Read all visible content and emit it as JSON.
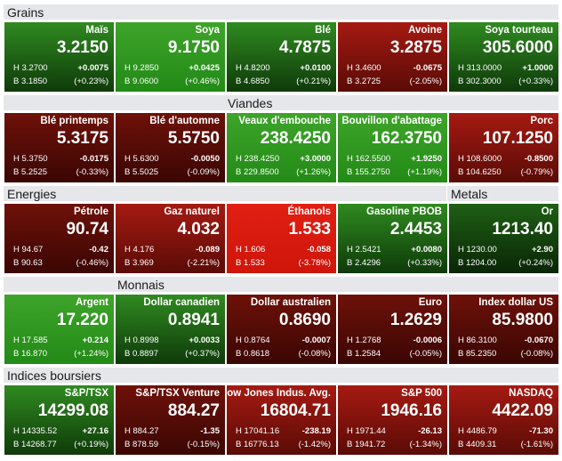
{
  "sections": {
    "grains": "Grains",
    "viandes": "Viandes",
    "energies": "Energies",
    "metals": "Metals",
    "monnais": "Monnais",
    "indices": "Indices boursiers"
  },
  "tiles": [
    {
      "name": "Maïs",
      "price": "3.2150",
      "high": "H 3.2700",
      "low": "B 3.1850",
      "change": "+0.0075",
      "percent": "(+0.23%)"
    },
    {
      "name": "Soya",
      "price": "9.1750",
      "high": "H 9.2850",
      "low": "B 9.0600",
      "change": "+0.0425",
      "percent": "(+0.46%)"
    },
    {
      "name": "Blé",
      "price": "4.7875",
      "high": "H 4.8200",
      "low": "B 4.6850",
      "change": "+0.0100",
      "percent": "(+0.21%)"
    },
    {
      "name": "Avoine",
      "price": "3.2875",
      "high": "H 3.4600",
      "low": "B 3.2725",
      "change": "-0.0675",
      "percent": "(-2.05%)"
    },
    {
      "name": "Soya tourteau",
      "price": "305.6000",
      "high": "H 313.0000",
      "low": "B 302.3000",
      "change": "+1.0000",
      "percent": "(+0.33%)"
    },
    {
      "name": "Blé printemps",
      "price": "5.3175",
      "high": "H 5.3750",
      "low": "B 5.2525",
      "change": "-0.0175",
      "percent": "(-0.33%)"
    },
    {
      "name": "Blé d'automne",
      "price": "5.5750",
      "high": "H 5.6300",
      "low": "B 5.5025",
      "change": "-0.0050",
      "percent": "(-0.09%)"
    },
    {
      "name": "Veaux d'embouche",
      "price": "238.4250",
      "high": "H 238.4250",
      "low": "B 229.8500",
      "change": "+3.0000",
      "percent": "(+1.26%)"
    },
    {
      "name": "Bouvillon d'abattage",
      "price": "162.3750",
      "high": "H 162.5500",
      "low": "B 155.2750",
      "change": "+1.9250",
      "percent": "(+1.19%)"
    },
    {
      "name": "Porc",
      "price": "107.1250",
      "high": "H 108.6000",
      "low": "B 104.6250",
      "change": "-0.8500",
      "percent": "(-0.79%)"
    },
    {
      "name": "Pétrole",
      "price": "90.74",
      "high": "H 94.67",
      "low": "B 90.63",
      "change": "-0.42",
      "percent": "(-0.46%)"
    },
    {
      "name": "Gaz naturel",
      "price": "4.032",
      "high": "H 4.176",
      "low": "B 3.969",
      "change": "-0.089",
      "percent": "(-2.21%)"
    },
    {
      "name": "Éthanols",
      "price": "1.533",
      "high": "H 1.606",
      "low": "B 1.533",
      "change": "-0.058",
      "percent": "(-3.78%)"
    },
    {
      "name": "Gasoline PBOB",
      "price": "2.4453",
      "high": "H 2.5421",
      "low": "B 2.4296",
      "change": "+0.0080",
      "percent": "(+0.33%)"
    },
    {
      "name": "Or",
      "price": "1213.40",
      "high": "H 1230.00",
      "low": "B 1204.00",
      "change": "+2.90",
      "percent": "(+0.24%)"
    },
    {
      "name": "Argent",
      "price": "17.220",
      "high": "H 17.585",
      "low": "B 16.870",
      "change": "+0.214",
      "percent": "(+1.24%)"
    },
    {
      "name": "Dollar canadien",
      "price": "0.8941",
      "high": "H 0.8998",
      "low": "B 0.8897",
      "change": "+0.0033",
      "percent": "(+0.37%)"
    },
    {
      "name": "Dollar australien",
      "price": "0.8690",
      "high": "H 0.8764",
      "low": "B 0.8618",
      "change": "-0.0007",
      "percent": "(-0.08%)"
    },
    {
      "name": "Euro",
      "price": "1.2629",
      "high": "H 1.2768",
      "low": "B 1.2584",
      "change": "-0.0006",
      "percent": "(-0.05%)"
    },
    {
      "name": "Index dollar US",
      "price": "85.9800",
      "high": "H 86.3100",
      "low": "B 85.2350",
      "change": "-0.0670",
      "percent": "(-0.08%)"
    },
    {
      "name": "S&P/TSX",
      "price": "14299.08",
      "high": "H 14335.52",
      "low": "B 14268.77",
      "change": "+27.16",
      "percent": "(+0.19%)"
    },
    {
      "name": "S&P/TSX Venture",
      "price": "884.27",
      "high": "H 884.27",
      "low": "B 878.59",
      "change": "-1.35",
      "percent": "(-0.15%)"
    },
    {
      "name": "Dow Jones Indus. Avg.",
      "price": "16804.71",
      "high": "H 17041.16",
      "low": "B 16776.13",
      "change": "-238.19",
      "percent": "(-1.42%)"
    },
    {
      "name": "S&P 500",
      "price": "1946.16",
      "high": "H 1971.44",
      "low": "B 1941.72",
      "change": "-26.13",
      "percent": "(-1.34%)"
    },
    {
      "name": "NASDAQ",
      "price": "4422.09",
      "high": "H 4486.79",
      "low": "B 4409.31",
      "change": "-71.30",
      "percent": "(-1.61%)"
    }
  ]
}
